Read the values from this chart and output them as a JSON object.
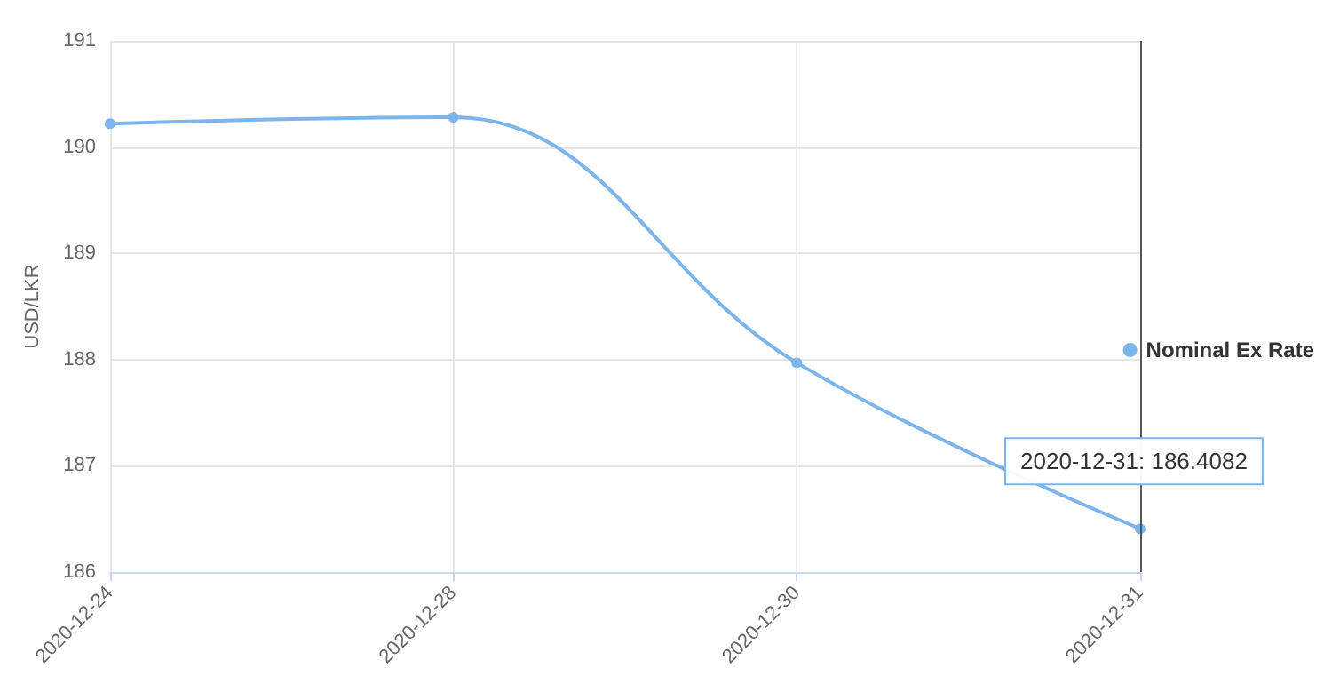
{
  "chart_data": {
    "type": "line",
    "ylabel": "USD/LKR",
    "categories": [
      "2020-12-24",
      "2020-12-28",
      "2020-12-30",
      "2020-12-31"
    ],
    "series": [
      {
        "name": "Nominal Ex Rate",
        "color": "#7cb5ec",
        "values": [
          190.22,
          190.28,
          187.97,
          186.4082
        ]
      }
    ],
    "ylim": [
      186,
      191
    ],
    "yticks": [
      186,
      187,
      188,
      189,
      190,
      191
    ],
    "grid": true,
    "legend": "right",
    "marker": "circle",
    "line_style": "solid",
    "ref_lines": [
      {
        "axis": "x",
        "value": "2020-12-31",
        "color": "#555555"
      }
    ],
    "annotations": [
      {
        "text": "2020-12-31: 186.4082",
        "x": "2020-12-31",
        "y": 186.4082
      }
    ]
  }
}
